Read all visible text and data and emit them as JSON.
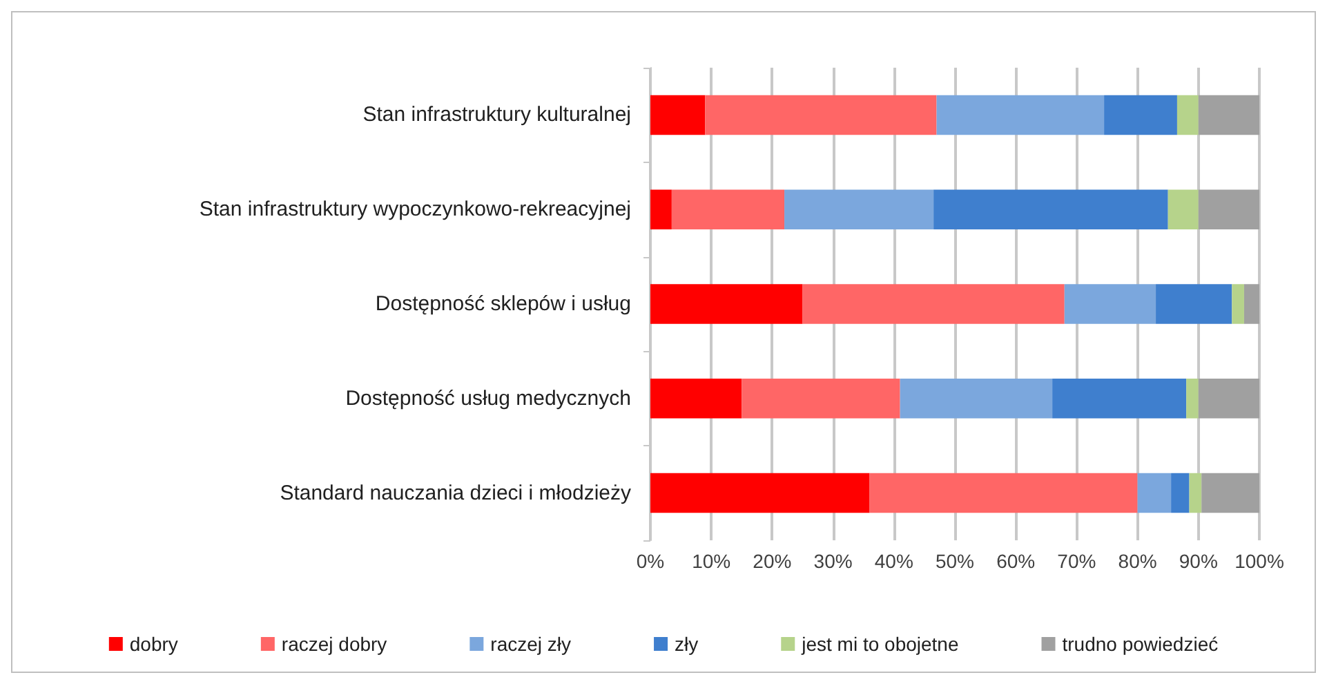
{
  "chart_data": {
    "type": "bar",
    "orientation": "horizontal",
    "stacked": true,
    "categories": [
      "Stan infrastruktury kulturalnej",
      "Stan infrastruktury wypoczynkowo-rekreacyjnej",
      "Dostępność sklepów i usług",
      "Dostępność usług medycznych",
      "Standard nauczania dzieci i młodzieży"
    ],
    "series": [
      {
        "name": "dobry",
        "color": "#ff0000",
        "values": [
          9,
          3.5,
          25,
          15,
          36
        ]
      },
      {
        "name": "raczej dobry",
        "color": "#ff6666",
        "values": [
          38,
          18.5,
          43,
          26,
          44
        ]
      },
      {
        "name": "raczej zły",
        "color": "#7ba7dd",
        "values": [
          27.5,
          24.5,
          15,
          25,
          5.5
        ]
      },
      {
        "name": "zły",
        "color": "#3f7fce",
        "values": [
          12,
          38.5,
          12.5,
          22,
          3
        ]
      },
      {
        "name": "jest mi to obojetne",
        "color": "#b6d38b",
        "values": [
          3.5,
          5,
          2,
          2,
          2
        ]
      },
      {
        "name": "trudno powiedzieć",
        "color": "#a0a0a0",
        "values": [
          10,
          10,
          2.5,
          10,
          9.5
        ]
      }
    ],
    "xlim": [
      0,
      100
    ],
    "xticks": [
      {
        "value": 0,
        "label": "0%"
      },
      {
        "value": 10,
        "label": "10%"
      },
      {
        "value": 20,
        "label": "20%"
      },
      {
        "value": 30,
        "label": "30%"
      },
      {
        "value": 40,
        "label": "40%"
      },
      {
        "value": 50,
        "label": "50%"
      },
      {
        "value": 60,
        "label": "60%"
      },
      {
        "value": 70,
        "label": "70%"
      },
      {
        "value": 80,
        "label": "80%"
      },
      {
        "value": 90,
        "label": "90%"
      },
      {
        "value": 100,
        "label": "100%"
      }
    ],
    "grid": "x",
    "legend": "bottom"
  }
}
